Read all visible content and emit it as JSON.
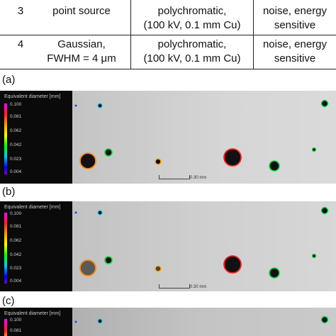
{
  "table": {
    "rows": [
      {
        "id": "3",
        "source": [
          "point source"
        ],
        "spectrum": [
          "polychromatic,",
          "(100 kV, 0.1 mm Cu)"
        ],
        "detector": [
          "noise, energy",
          "sensitive"
        ]
      },
      {
        "id": "4",
        "source": [
          "Gaussian,",
          "FWHM = 4 μm"
        ],
        "spectrum": [
          "polychromatic,",
          "(100 kV, 0.1 mm Cu)"
        ],
        "detector": [
          "noise, energy",
          "sensitive"
        ]
      }
    ]
  },
  "panels": [
    {
      "label": "(a)",
      "legend_title": "Equivalent diameter [mm]",
      "ticks": [
        "0.100",
        "0.081",
        "0.062",
        "0.042",
        "0.023",
        "0.004"
      ],
      "scale_text": "0.30 mm"
    },
    {
      "label": "(b)",
      "legend_title": "Equivalent diameter [mm]",
      "ticks": [
        "0.100",
        "0.081",
        "0.062",
        "0.042",
        "0.023",
        "0.004"
      ],
      "scale_text": "0.30 mm"
    },
    {
      "label": "(c)",
      "legend_title": "Equivalent diameter [mm]",
      "ticks": [
        "0.100",
        "0.081"
      ]
    }
  ],
  "colors": {
    "colorbar": [
      "#ff00ff",
      "#ff2020",
      "#ffa000",
      "#ffff00",
      "#00ff00",
      "#00c8ff",
      "#0000ff",
      "#7a00c0"
    ]
  }
}
